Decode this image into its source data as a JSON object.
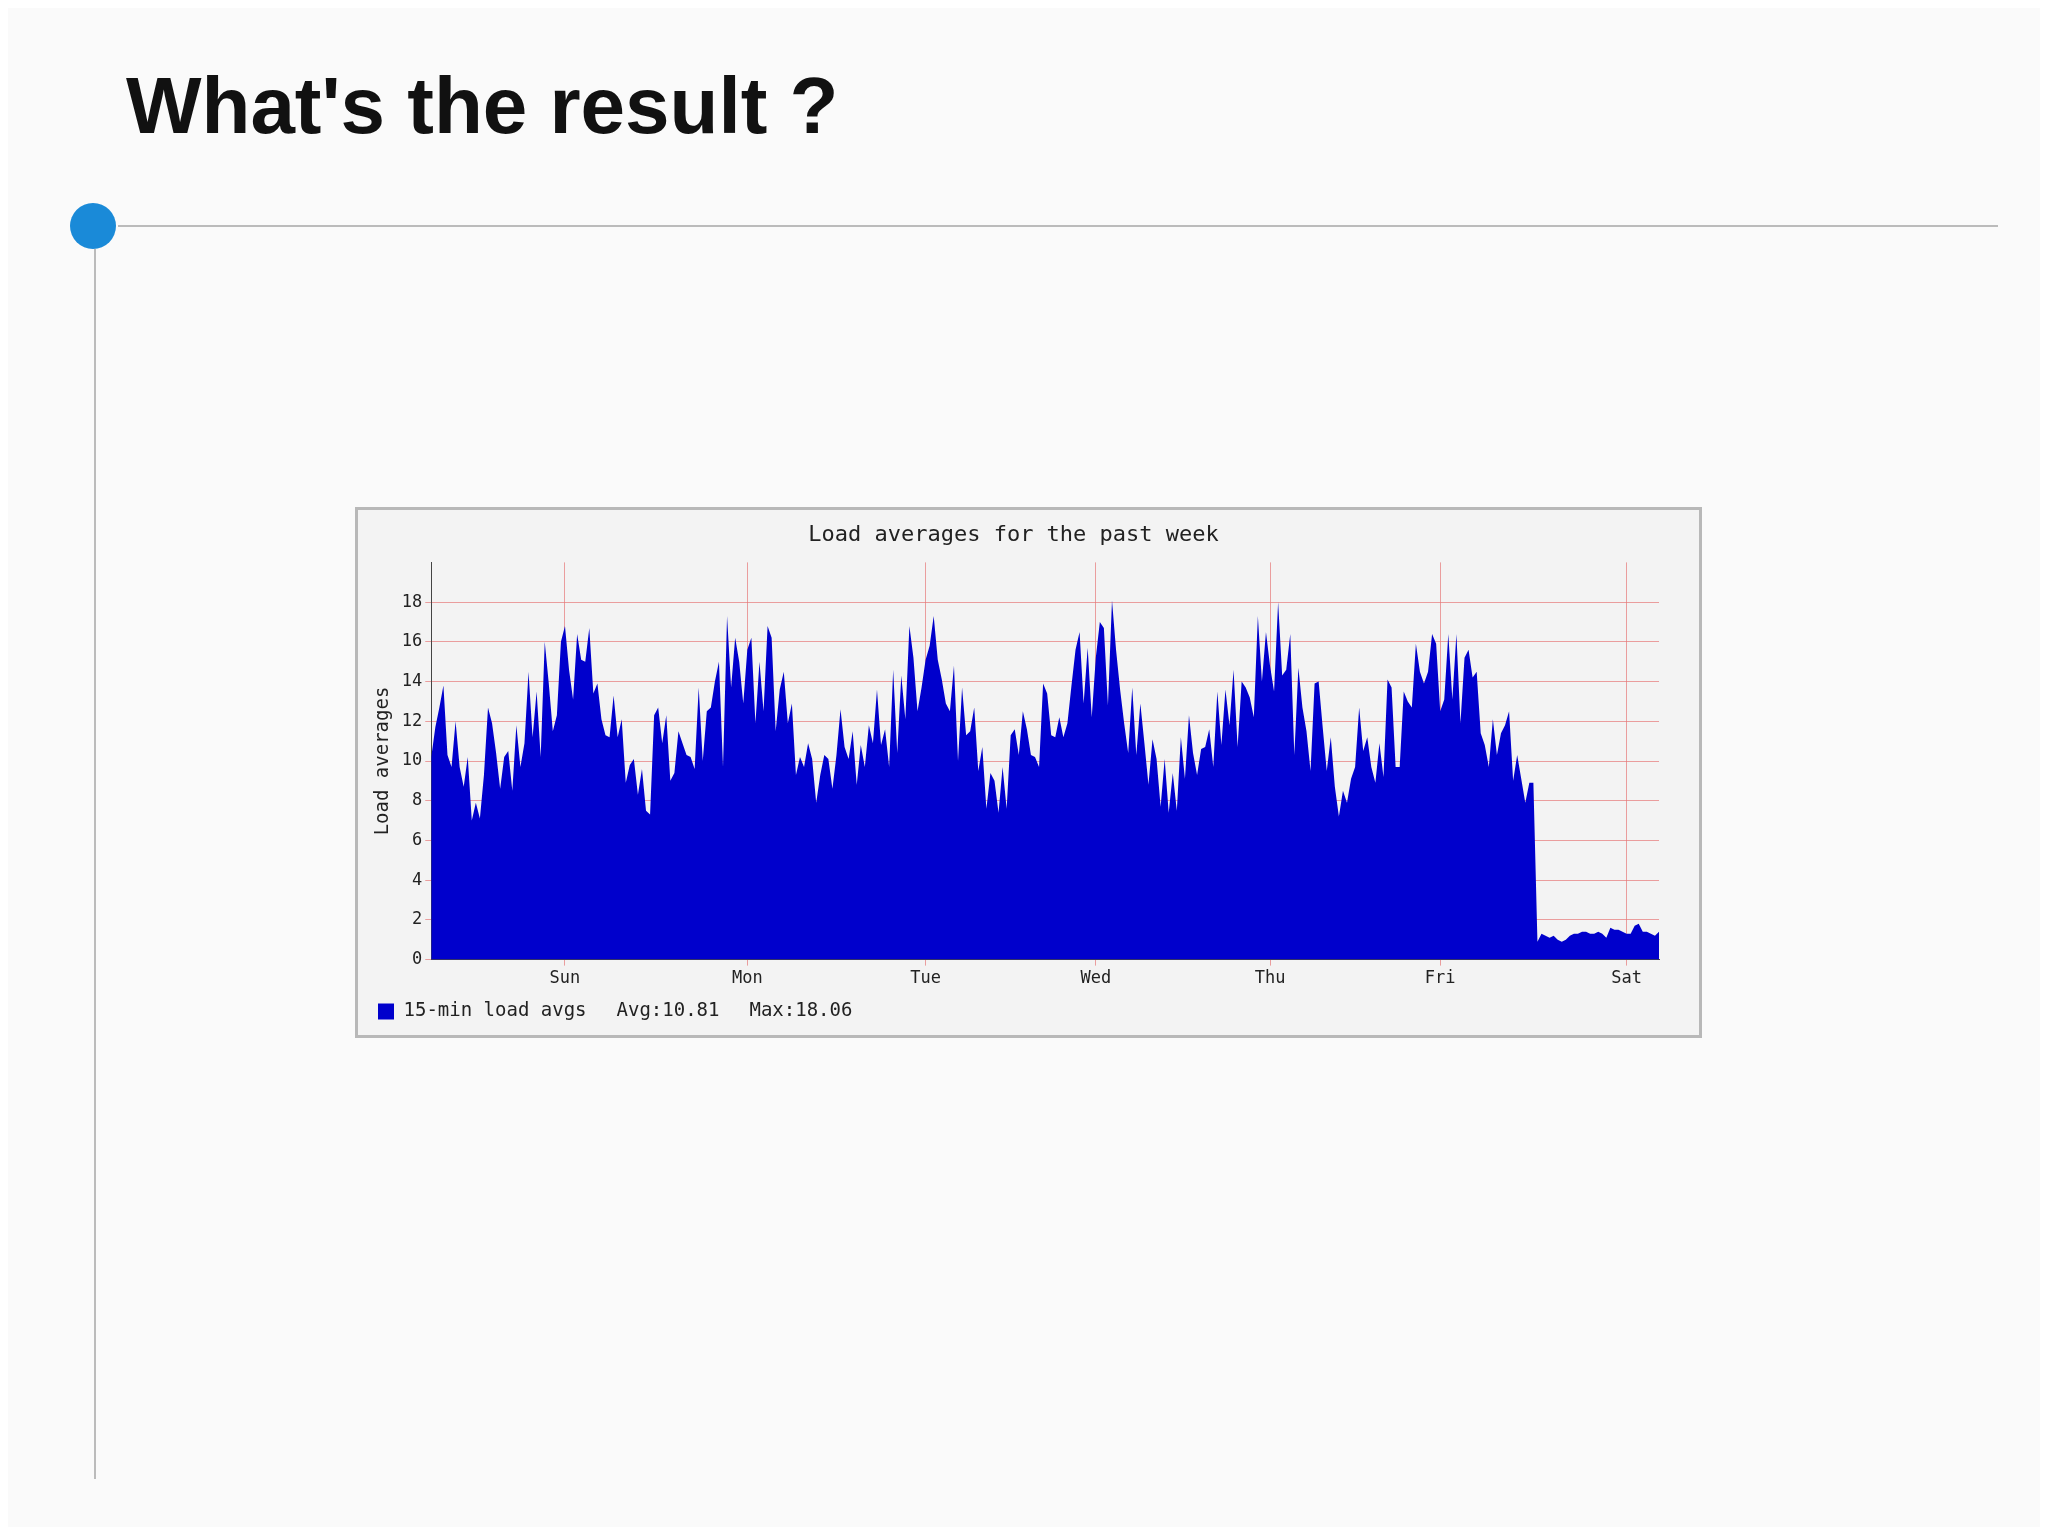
{
  "chart_data": {
    "type": "area",
    "title": "What's the result ?",
    "subtitle": "Load averages for the past week",
    "ylabel": "Load averages",
    "categories": [
      null,
      null,
      null,
      null,
      null,
      null,
      null,
      null,
      null,
      null,
      null,
      null,
      null,
      null,
      null,
      null,
      null,
      null,
      null,
      null,
      null,
      null,
      null,
      null,
      null,
      null,
      null,
      null,
      null,
      null,
      null,
      null,
      null,
      "Sun",
      null,
      null,
      null,
      null,
      null,
      null,
      null,
      null,
      null,
      null,
      null,
      null,
      null,
      null,
      null,
      null,
      null,
      null,
      null,
      null,
      null,
      null,
      null,
      null,
      null,
      null,
      null,
      null,
      null,
      null,
      null,
      null,
      null,
      null,
      null,
      null,
      null,
      null,
      null,
      null,
      null,
      null,
      null,
      null,
      "Mon",
      null,
      null,
      null,
      null,
      null,
      null,
      null,
      null,
      null,
      null,
      null,
      null,
      null,
      null,
      null,
      null,
      null,
      null,
      null,
      null,
      null,
      null,
      null,
      null,
      null,
      null,
      null,
      null,
      null,
      null,
      null,
      null,
      null,
      null,
      null,
      null,
      null,
      null,
      null,
      null,
      null,
      null,
      null,
      "Tue",
      null,
      null,
      null,
      null,
      null,
      null,
      null,
      null,
      null,
      null,
      null,
      null,
      null,
      null,
      null,
      null,
      null,
      null,
      null,
      null,
      null,
      null,
      null,
      null,
      null,
      null,
      null,
      null,
      null,
      null,
      null,
      null,
      null,
      null,
      null,
      null,
      null,
      null,
      null,
      null,
      null,
      "Wed",
      null,
      null,
      null,
      null,
      null,
      null,
      null,
      null,
      null,
      null,
      null,
      null,
      null,
      null,
      null,
      null,
      null,
      null,
      null,
      null,
      null,
      null,
      null,
      null,
      null,
      null,
      null,
      null,
      null,
      null,
      null,
      null,
      null,
      null,
      null,
      null,
      null,
      null,
      null,
      null,
      null,
      null,
      "Thu",
      null,
      null,
      null,
      null,
      null,
      null,
      null,
      null,
      null,
      null,
      null,
      null,
      null,
      null,
      null,
      null,
      null,
      null,
      null,
      null,
      null,
      null,
      null,
      null,
      null,
      null,
      null,
      null,
      null,
      null,
      null,
      null,
      null,
      null,
      null,
      null,
      null,
      null,
      null,
      null,
      null,
      "Fri",
      null,
      null,
      null,
      null,
      null,
      null,
      null,
      null,
      null,
      null,
      null,
      null,
      null,
      null,
      null,
      null,
      null,
      null,
      null,
      null,
      null,
      null,
      null,
      null,
      null,
      null,
      null,
      null,
      null,
      null,
      null,
      null,
      null,
      null,
      null,
      null,
      null,
      null,
      null,
      null,
      null,
      null,
      null,
      null,
      null,
      "Sat",
      null,
      null,
      null,
      null,
      null,
      null,
      null,
      null
    ],
    "ylim": [
      0,
      20
    ],
    "yticks": [
      0,
      2,
      4,
      6,
      8,
      10,
      12,
      14,
      16,
      18
    ],
    "grid": true,
    "legend": "bottom left",
    "annotations": [
      "Avg:10.81",
      "Max:18.06"
    ],
    "series": [
      {
        "name": "15-min load avgs",
        "color": "#0000cc",
        "values": [
          10.2,
          11.7,
          12.7,
          13.8,
          10.3,
          9.7,
          12.0,
          9.7,
          8.7,
          10.2,
          7.0,
          7.9,
          7.1,
          9.3,
          12.7,
          11.9,
          10.4,
          8.6,
          10.2,
          10.5,
          8.5,
          11.8,
          9.7,
          10.9,
          14.5,
          11.2,
          13.5,
          10.2,
          16.0,
          13.9,
          11.5,
          12.3,
          16.0,
          16.8,
          14.6,
          13.1,
          16.4,
          15.1,
          15.0,
          16.7,
          13.4,
          13.9,
          12.1,
          11.3,
          11.2,
          13.3,
          11.2,
          12.1,
          8.9,
          9.8,
          10.1,
          8.3,
          9.6,
          7.5,
          7.3,
          12.3,
          12.7,
          10.9,
          12.3,
          9.0,
          9.4,
          11.5,
          10.9,
          10.3,
          10.2,
          9.6,
          13.7,
          10.0,
          12.5,
          12.7,
          14.0,
          15.0,
          9.7,
          17.3,
          13.7,
          16.2,
          15.0,
          12.9,
          15.6,
          16.2,
          11.9,
          15.0,
          12.5,
          16.8,
          16.2,
          11.5,
          13.6,
          14.5,
          11.9,
          12.9,
          9.3,
          10.2,
          9.7,
          10.9,
          10.1,
          7.9,
          9.3,
          10.3,
          10.1,
          8.6,
          10.3,
          12.6,
          10.7,
          10.1,
          11.5,
          8.8,
          10.8,
          9.7,
          11.8,
          10.9,
          13.6,
          10.8,
          11.6,
          9.7,
          14.6,
          10.4,
          14.3,
          12.1,
          16.8,
          15.2,
          12.5,
          13.7,
          15.1,
          15.8,
          17.3,
          15.1,
          14.1,
          12.9,
          12.5,
          14.8,
          10.0,
          13.7,
          11.3,
          11.5,
          12.7,
          9.5,
          10.7,
          7.6,
          9.4,
          9.0,
          7.4,
          9.7,
          7.6,
          11.3,
          11.6,
          10.3,
          12.5,
          11.6,
          10.3,
          10.2,
          9.7,
          13.9,
          13.4,
          11.3,
          11.2,
          12.2,
          11.2,
          11.9,
          13.8,
          15.6,
          16.5,
          12.9,
          15.7,
          12.2,
          15.2,
          17.0,
          16.7,
          12.8,
          18.1,
          15.6,
          13.6,
          11.9,
          10.4,
          13.7,
          10.3,
          12.9,
          10.9,
          8.8,
          11.1,
          10.1,
          7.7,
          10.1,
          7.4,
          9.4,
          7.5,
          11.2,
          9.1,
          12.3,
          10.4,
          9.3,
          10.6,
          10.7,
          11.6,
          9.7,
          13.5,
          10.8,
          13.6,
          11.8,
          14.6,
          10.7,
          14.0,
          13.7,
          13.2,
          12.2,
          17.3,
          14.0,
          16.5,
          14.8,
          13.5,
          18.0,
          14.3,
          14.6,
          16.4,
          10.3,
          14.7,
          12.7,
          11.5,
          9.5,
          13.9,
          14.0,
          11.7,
          9.5,
          11.2,
          8.7,
          7.2,
          8.5,
          7.9,
          9.1,
          9.7,
          12.7,
          10.5,
          11.2,
          9.7,
          8.9,
          10.9,
          9.2,
          14.1,
          13.7,
          9.7,
          9.7,
          13.5,
          13.0,
          12.7,
          15.9,
          14.5,
          13.9,
          14.5,
          16.4,
          15.9,
          12.5,
          13.1,
          16.4,
          13.1,
          16.4,
          11.9,
          15.2,
          15.6,
          14.2,
          14.5,
          11.4,
          10.8,
          9.7,
          12.1,
          10.3,
          11.4,
          11.8,
          12.5,
          9.0,
          10.3,
          9.1,
          7.9,
          8.9,
          8.9,
          0.9,
          1.3,
          1.2,
          1.1,
          1.2,
          1.0,
          0.9,
          1.0,
          1.2,
          1.3,
          1.3,
          1.4,
          1.4,
          1.3,
          1.3,
          1.4,
          1.3,
          1.1,
          1.6,
          1.5,
          1.5,
          1.4,
          1.3,
          1.3,
          1.7,
          1.8,
          1.4,
          1.4,
          1.3,
          1.2,
          1.4
        ]
      }
    ]
  }
}
